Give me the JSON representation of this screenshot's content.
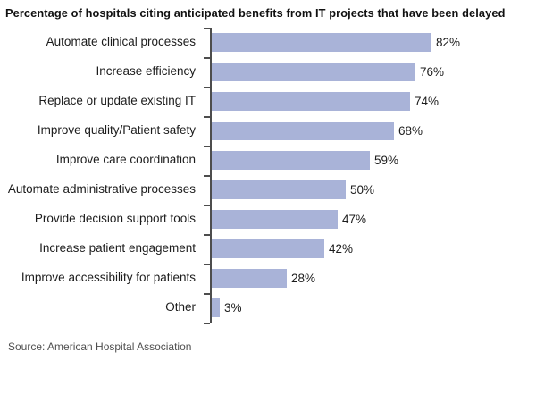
{
  "source_note": "Source: American Hospital Association",
  "colors": {
    "background": "#ffffff",
    "bar": "#a9b3d8",
    "axis": "#4d4d4d",
    "title_text": "#111111",
    "label_text": "#1c1c1c",
    "source_text": "#4f4f4f"
  },
  "chart_data": {
    "type": "bar",
    "orientation": "horizontal",
    "title": "Percentage of hospitals citing anticipated benefits from IT projects that have been delayed",
    "categories": [
      "Automate clinical processes",
      "Increase efficiency",
      "Replace or update existing IT",
      "Improve quality/Patient safety",
      "Improve care coordination",
      "Automate administrative processes",
      "Provide decision support tools",
      "Increase patient engagement",
      "Improve accessibility for patients",
      "Other"
    ],
    "values": [
      82,
      76,
      74,
      68,
      59,
      50,
      47,
      42,
      28,
      3
    ],
    "value_labels": [
      "82%",
      "76%",
      "74%",
      "68%",
      "59%",
      "50%",
      "47%",
      "42%",
      "28%",
      "3%"
    ],
    "xlabel": "",
    "ylabel": "",
    "xlim": [
      0,
      100
    ],
    "grid": false,
    "legend": "none",
    "data_labels": "outside-end",
    "bar_color": "#a9b3d8",
    "axis_color": "#4d4d4d"
  }
}
